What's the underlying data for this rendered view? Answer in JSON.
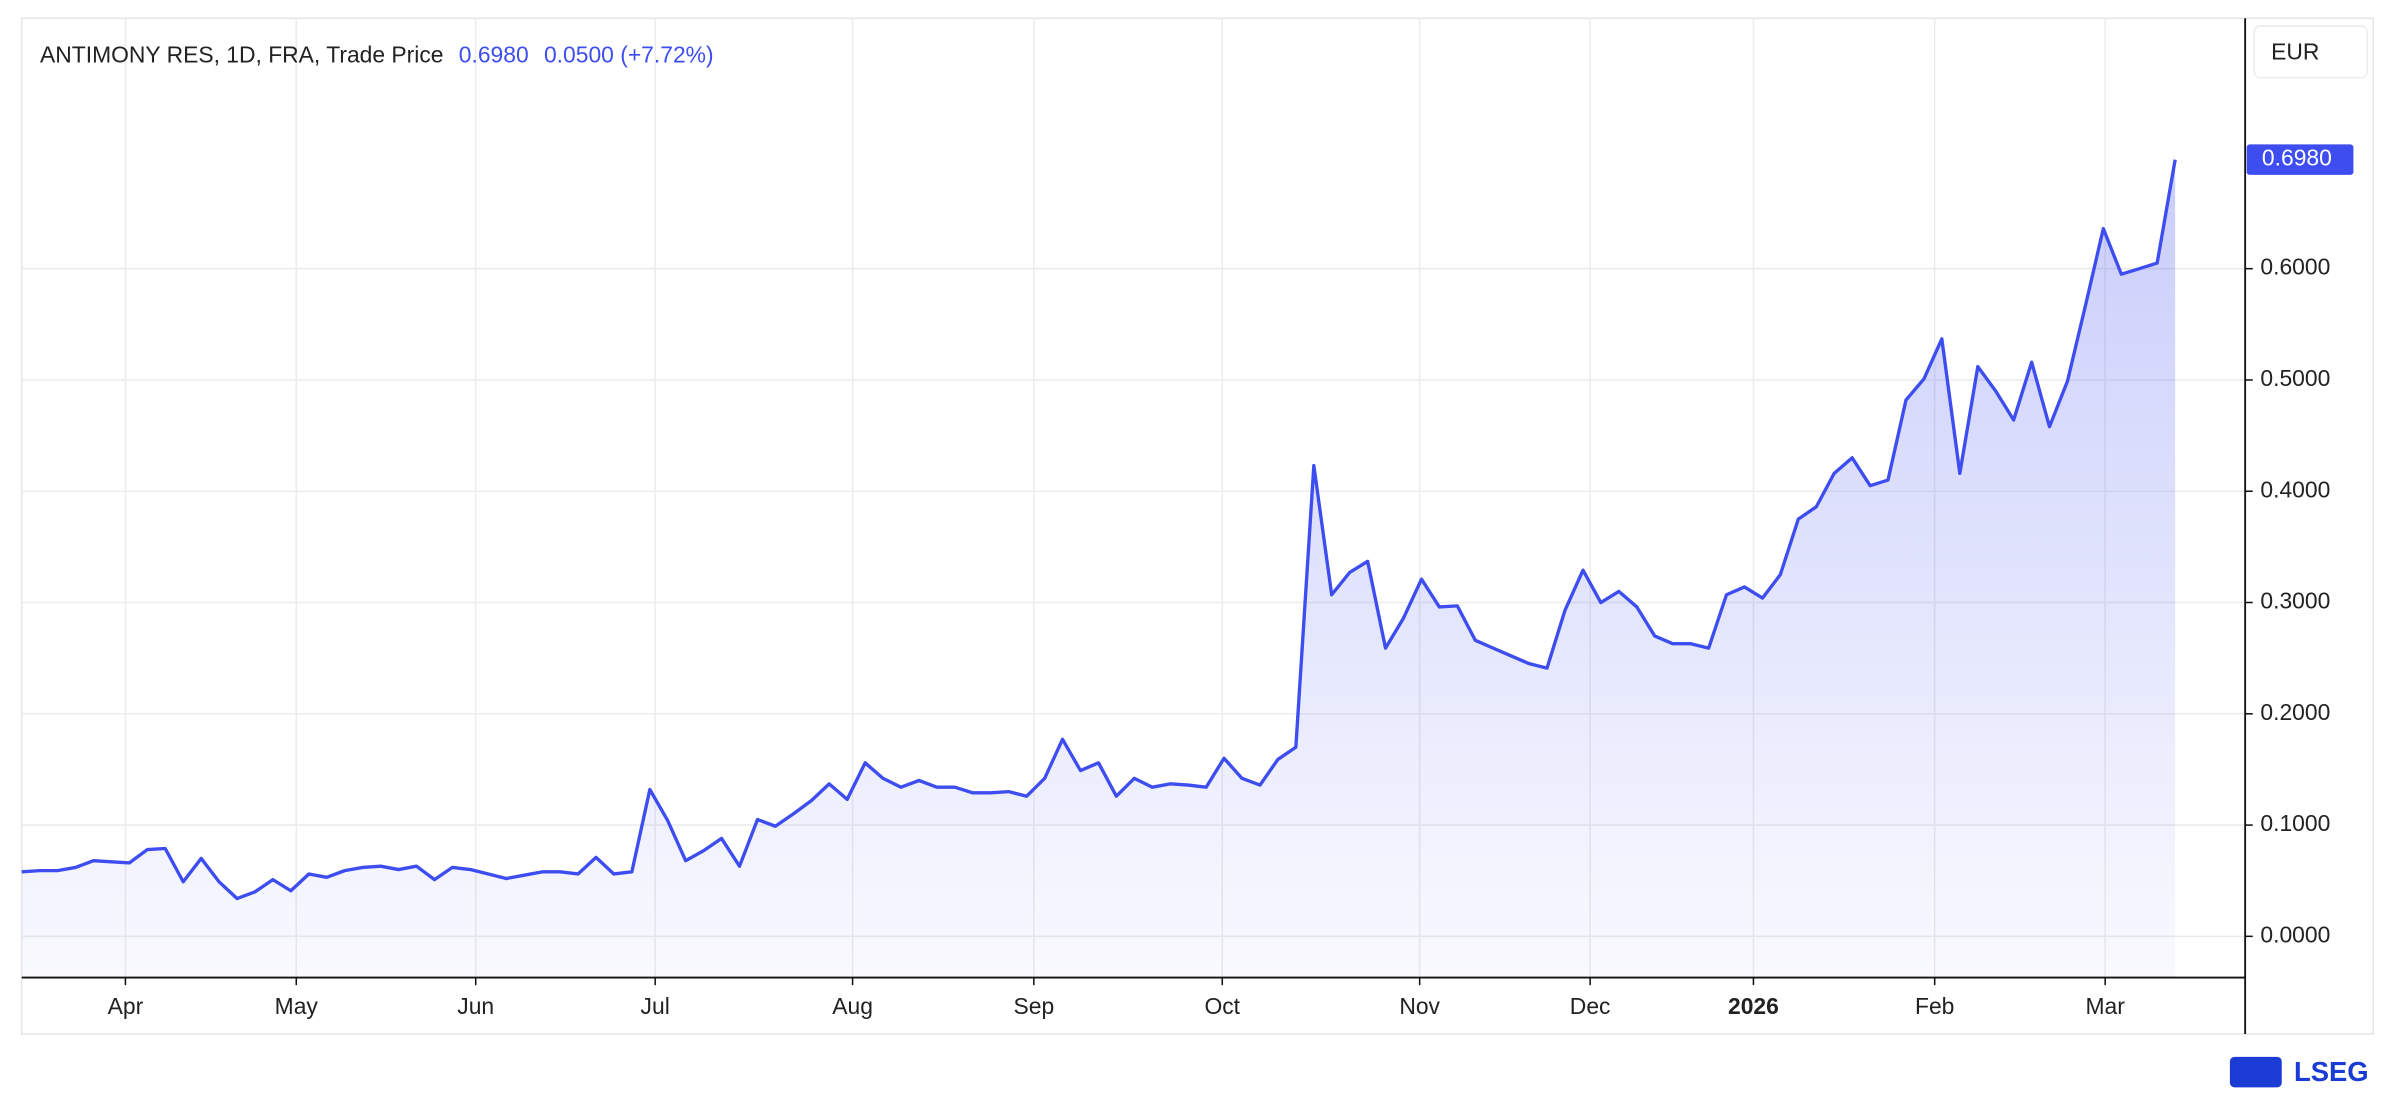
{
  "chart_data": {
    "type": "line",
    "title": "ANTIMONY RES, 1D, FRA, Trade Price",
    "price": {
      "value": 0.698,
      "label": "0.6980"
    },
    "change": "0.0500 (+7.72%)",
    "currency": "EUR",
    "brand": "LSEG",
    "color": "#3d4df0",
    "grid": true,
    "xlim": [
      0,
      123.9
    ],
    "xticks": [
      {
        "value": 5.78,
        "label": "Apr"
      },
      {
        "value": 15.3,
        "label": "May"
      },
      {
        "value": 25.3,
        "label": "Jun"
      },
      {
        "value": 35.3,
        "label": "Jul"
      },
      {
        "value": 46.3,
        "label": "Aug"
      },
      {
        "value": 56.4,
        "label": "Sep"
      },
      {
        "value": 66.9,
        "label": "Oct"
      },
      {
        "value": 77.9,
        "label": "Nov"
      },
      {
        "value": 87.4,
        "label": "Dec"
      },
      {
        "value": 96.5,
        "label": "2026"
      },
      {
        "value": 106.6,
        "label": "Feb"
      },
      {
        "value": 116.1,
        "label": "Mar"
      }
    ],
    "ylim": [
      -0.037,
      0.825
    ],
    "yticks": [
      {
        "value": 0,
        "label": "0.0000"
      },
      {
        "value": 0.1,
        "label": "0.1000"
      },
      {
        "value": 0.2,
        "label": "0.2000"
      },
      {
        "value": 0.3,
        "label": "0.3000"
      },
      {
        "value": 0.4,
        "label": "0.4000"
      },
      {
        "value": 0.5,
        "label": "0.5000"
      },
      {
        "value": 0.6,
        "label": "0.6000"
      }
    ],
    "values": [
      0.058,
      0.059,
      0.059,
      0.062,
      0.068,
      0.067,
      0.066,
      0.078,
      0.079,
      0.049,
      0.07,
      0.049,
      0.034,
      0.04,
      0.051,
      0.041,
      0.056,
      0.053,
      0.059,
      0.062,
      0.063,
      0.06,
      0.063,
      0.051,
      0.062,
      0.06,
      0.056,
      0.052,
      0.055,
      0.058,
      0.058,
      0.056,
      0.071,
      0.056,
      0.058,
      0.132,
      0.104,
      0.068,
      0.077,
      0.088,
      0.063,
      0.105,
      0.099,
      0.11,
      0.122,
      0.137,
      0.123,
      0.156,
      0.142,
      0.134,
      0.14,
      0.134,
      0.134,
      0.129,
      0.129,
      0.13,
      0.126,
      0.142,
      0.177,
      0.149,
      0.156,
      0.126,
      0.142,
      0.134,
      0.137,
      0.136,
      0.134,
      0.16,
      0.142,
      0.136,
      0.159,
      0.17,
      0.423,
      0.307,
      0.327,
      0.337,
      0.259,
      0.286,
      0.321,
      0.296,
      0.297,
      0.266,
      0.259,
      0.252,
      0.245,
      0.241,
      0.293,
      0.329,
      0.3,
      0.31,
      0.296,
      0.27,
      0.263,
      0.263,
      0.259,
      0.307,
      0.314,
      0.304,
      0.325,
      0.375,
      0.386,
      0.416,
      0.43,
      0.405,
      0.41,
      0.482,
      0.501,
      0.537,
      0.416,
      0.512,
      0.49,
      0.464,
      0.516,
      0.458,
      0.499,
      0.567,
      0.636,
      0.595,
      0.6,
      0.605,
      0.698
    ]
  }
}
